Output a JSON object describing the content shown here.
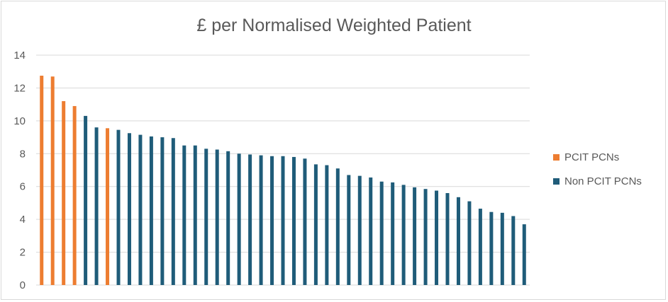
{
  "chart_data": {
    "type": "bar",
    "title": "£ per Normalised Weighted Patient",
    "xlabel": "",
    "ylabel": "",
    "ylim": [
      0,
      14
    ],
    "yticks": [
      0,
      2,
      4,
      6,
      8,
      10,
      12,
      14
    ],
    "grid": true,
    "legend_position": "right",
    "colors": {
      "PCIT PCNs": "#ed7d31",
      "Non PCIT PCNs": "#1f5c79"
    },
    "series": [
      {
        "name": "PCIT PCNs",
        "values": [
          12.75,
          12.7,
          11.2,
          10.9,
          null,
          null,
          9.55,
          null,
          null,
          null,
          null,
          null,
          null,
          null,
          null,
          null,
          null,
          null,
          null,
          null,
          null,
          null,
          null,
          null,
          null,
          null,
          null,
          null,
          null,
          null,
          null,
          null,
          null,
          null,
          null,
          null,
          null,
          null,
          null,
          null,
          null,
          null,
          null,
          null,
          null
        ]
      },
      {
        "name": "Non PCIT PCNs",
        "values": [
          null,
          null,
          null,
          null,
          10.3,
          9.6,
          null,
          9.45,
          9.25,
          9.15,
          9.05,
          9.0,
          8.95,
          8.5,
          8.5,
          8.3,
          8.25,
          8.15,
          8.0,
          7.95,
          7.9,
          7.85,
          7.85,
          7.8,
          7.7,
          7.35,
          7.3,
          7.1,
          6.7,
          6.65,
          6.55,
          6.3,
          6.25,
          6.1,
          5.95,
          5.85,
          5.75,
          5.6,
          5.35,
          5.1,
          4.65,
          4.45,
          4.4,
          4.2,
          3.7
        ]
      }
    ]
  }
}
